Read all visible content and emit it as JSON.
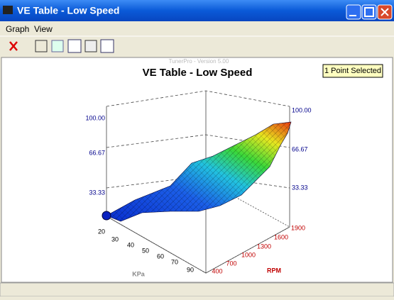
{
  "window": {
    "title": "VE Table - Low Speed"
  },
  "menu": [
    "Graph",
    "View"
  ],
  "graph": {
    "watermark": "TunerPro - Version 5.00",
    "title": "VE Table - Low Speed",
    "tooltip": "1 Point Selected",
    "z_ticks_left": [
      "100.00",
      "66.67",
      "33.33"
    ],
    "z_ticks_right": [
      "100.00",
      "66.67",
      "33.33"
    ],
    "kpa_ticks": [
      "20",
      "30",
      "40",
      "50",
      "60",
      "70",
      "90"
    ],
    "kpa_label": "KPa",
    "rpm_ticks": [
      "400",
      "700",
      "1000",
      "1300",
      "1600",
      "1900"
    ],
    "rpm_label": "RPM"
  }
}
